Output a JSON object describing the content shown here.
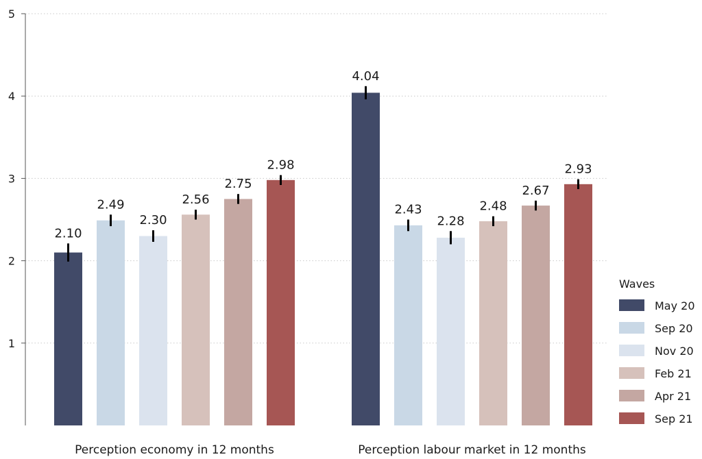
{
  "chart_data": {
    "type": "bar",
    "categories": [
      "Perception economy in 12 months",
      "Perception labour market in 12 months"
    ],
    "series": [
      {
        "name": "May 20",
        "color": "#414a68",
        "values": [
          2.1,
          4.04
        ],
        "errors": [
          0.11,
          0.08
        ]
      },
      {
        "name": "Sep 20",
        "color": "#c9d8e6",
        "values": [
          2.49,
          2.43
        ],
        "errors": [
          0.07,
          0.07
        ]
      },
      {
        "name": "Nov 20",
        "color": "#dbe3ee",
        "values": [
          2.3,
          2.28
        ],
        "errors": [
          0.07,
          0.08
        ]
      },
      {
        "name": "Feb 21",
        "color": "#d6c1bb",
        "values": [
          2.56,
          2.48
        ],
        "errors": [
          0.06,
          0.06
        ]
      },
      {
        "name": "Apr 21",
        "color": "#c4a7a2",
        "values": [
          2.75,
          2.67
        ],
        "errors": [
          0.06,
          0.06
        ]
      },
      {
        "name": "Sep 21",
        "color": "#a65654",
        "values": [
          2.98,
          2.93
        ],
        "errors": [
          0.06,
          0.06
        ]
      }
    ],
    "data_labels": [
      [
        "2.10",
        "4.04"
      ],
      [
        "2.49",
        "2.43"
      ],
      [
        "2.30",
        "2.28"
      ],
      [
        "2.56",
        "2.48"
      ],
      [
        "2.75",
        "2.67"
      ],
      [
        "2.98",
        "2.93"
      ]
    ],
    "yticks": [
      1,
      2,
      3,
      4,
      5
    ],
    "ytick_labels": [
      "1",
      "2",
      "3",
      "4",
      "5"
    ],
    "ylim": [
      0,
      5
    ],
    "grid": "horizontal dotted",
    "legend": {
      "title": "Waves",
      "placement": "right"
    }
  }
}
